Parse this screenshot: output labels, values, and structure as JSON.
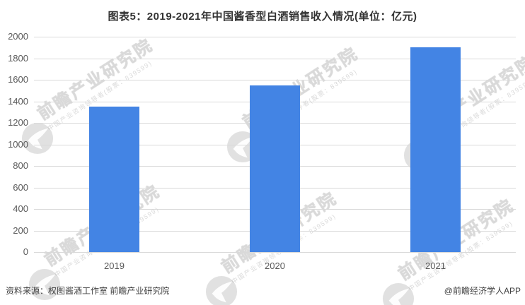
{
  "chart_data": {
    "type": "bar",
    "title": "图表5：2019-2021年中国酱香型白酒销售收入情况(单位：亿元)",
    "categories": [
      "2019",
      "2020",
      "2021"
    ],
    "values": [
      1350,
      1550,
      1900
    ],
    "unit": "亿元",
    "xlabel": "",
    "ylabel": "",
    "ylim": [
      0,
      2000
    ],
    "yticks": [
      0,
      200,
      400,
      600,
      800,
      1000,
      1200,
      1400,
      1600,
      1800,
      2000
    ],
    "grid": true,
    "legend": false,
    "bar_color": "#4384E4",
    "gridline_color": "#D9D9D9",
    "axis_label_color": "#595959",
    "title_color": "#333333"
  },
  "footer": {
    "source": "资料来源：权图酱酒工作室 前瞻产业研究院",
    "credit": "@前瞻经济学人APP"
  },
  "watermark": {
    "brand": "前瞻产业研究院",
    "tagline": "中国产业咨询领导者(股票：839599)"
  }
}
